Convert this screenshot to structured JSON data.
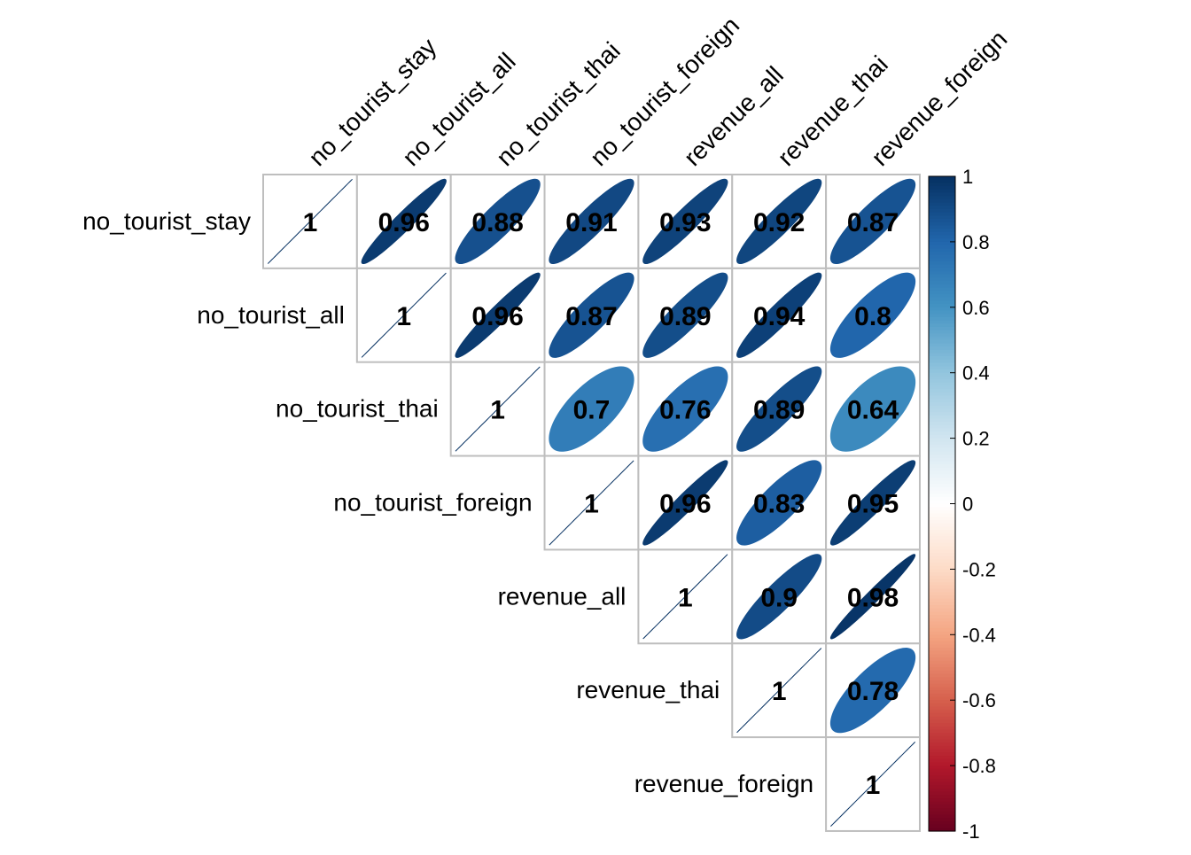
{
  "chart_data": {
    "type": "heatmap",
    "method": "ellipse",
    "matrix_shape": "upper-triangle",
    "variables": [
      "no_tourist_stay",
      "no_tourist_all",
      "no_tourist_thai",
      "no_tourist_foreign",
      "revenue_all",
      "revenue_thai",
      "revenue_foreign"
    ],
    "upper_values": [
      [
        1,
        0.96,
        0.88,
        0.91,
        0.93,
        0.92,
        0.87
      ],
      [
        1,
        0.96,
        0.87,
        0.89,
        0.94,
        0.8
      ],
      [
        1,
        0.7,
        0.76,
        0.89,
        0.64
      ],
      [
        1,
        0.96,
        0.83,
        0.95
      ],
      [
        1,
        0.9,
        0.98
      ],
      [
        1,
        0.78
      ],
      [
        1
      ]
    ],
    "value_labels": [
      [
        "1",
        "0.96",
        "0.88",
        "0.91",
        "0.93",
        "0.92",
        "0.87"
      ],
      [
        "1",
        "0.96",
        "0.87",
        "0.89",
        "0.94",
        "0.8"
      ],
      [
        "1",
        "0.7",
        "0.76",
        "0.89",
        "0.64"
      ],
      [
        "1",
        "0.96",
        "0.83",
        "0.95"
      ],
      [
        "1",
        "0.9",
        "0.98"
      ],
      [
        "1",
        "0.78"
      ],
      [
        "1"
      ]
    ],
    "colorbar": {
      "range": [
        -1,
        1
      ],
      "ticks": [
        1,
        0.8,
        0.6,
        0.4,
        0.2,
        0,
        -0.2,
        -0.4,
        -0.6,
        -0.8,
        -1
      ],
      "tick_labels": [
        "1",
        "0.8",
        "0.6",
        "0.4",
        "0.2",
        "0",
        "-0.2",
        "-0.4",
        "-0.6",
        "-0.8",
        "-1"
      ],
      "colors": [
        "#67001F",
        "#B2182B",
        "#D6604D",
        "#F4A582",
        "#FDDBC7",
        "#FFFFFF",
        "#D1E5F0",
        "#92C5DE",
        "#4393C3",
        "#2166AC",
        "#053061"
      ],
      "placement": "right"
    },
    "grid": true,
    "grid_color": "#BEBEBE",
    "title": "",
    "xlabel": "",
    "ylabel": ""
  }
}
